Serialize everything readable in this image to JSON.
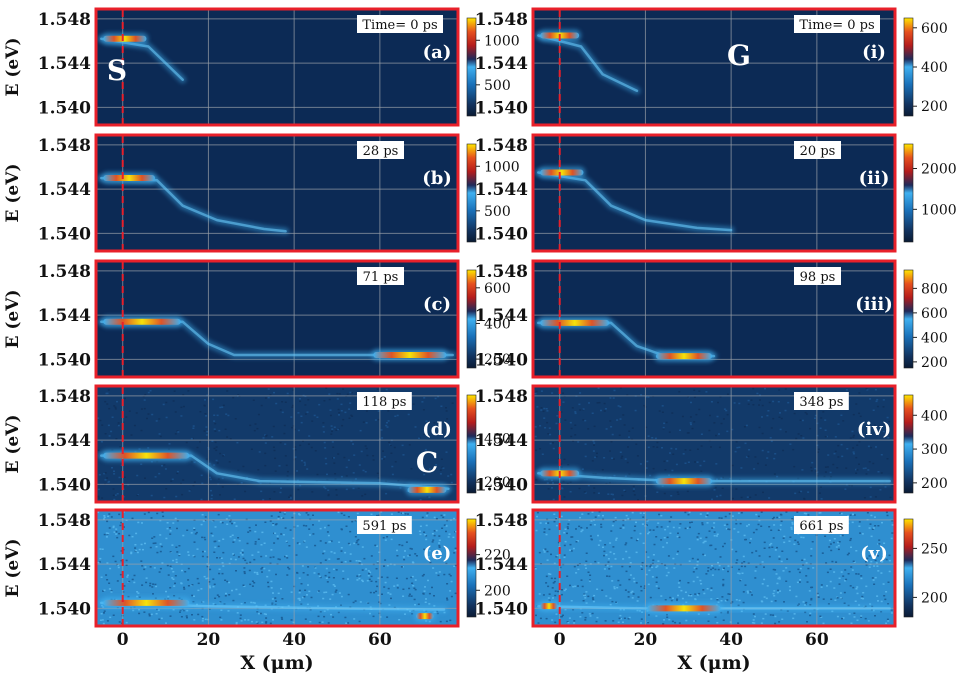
{
  "chart_data": {
    "type": "heatmap",
    "x_axis": {
      "label": "X (μm)",
      "ticks": [
        "0",
        "20",
        "40",
        "60"
      ],
      "range": [
        -6,
        78
      ]
    },
    "y_axis": {
      "label": "E (eV)",
      "ticks": [
        "1.548",
        "1.544",
        "1.540"
      ],
      "range": [
        1.5385,
        1.5488
      ]
    },
    "grid": true,
    "columns": [
      {
        "letter": "S",
        "panels": [
          {
            "label": "(a)",
            "time": "Time= 0 ps",
            "colorbar_ticks": [
              "1000",
              "500"
            ],
            "colorbar_range": [
              150,
              1250
            ],
            "features": [
              {
                "x_start": -5,
                "x_end": 6,
                "energy": 1.5462,
                "peak": 1200
              }
            ],
            "trail": [
              [
                -5,
                1.5462
              ],
              [
                6,
                1.5455
              ],
              [
                10,
                1.544
              ],
              [
                14,
                1.5425
              ]
            ]
          },
          {
            "label": "(b)",
            "time": "28 ps",
            "colorbar_ticks": [
              "1000",
              "500"
            ],
            "colorbar_range": [
              150,
              1250
            ],
            "features": [
              {
                "x_start": -5,
                "x_end": 8,
                "energy": 1.545,
                "peak": 1200
              }
            ],
            "trail": [
              [
                -5,
                1.545
              ],
              [
                8,
                1.5448
              ],
              [
                14,
                1.5425
              ],
              [
                22,
                1.5412
              ],
              [
                33,
                1.5404
              ],
              [
                38,
                1.5402
              ]
            ]
          },
          {
            "label": "(c)",
            "time": "71 ps",
            "colorbar_ticks": [
              "600",
              "400",
              "200"
            ],
            "colorbar_range": [
              150,
              700
            ],
            "features": [
              {
                "x_start": -5,
                "x_end": 14,
                "energy": 1.5434,
                "peak": 600
              },
              {
                "x_start": 58,
                "x_end": 76,
                "energy": 1.5404,
                "peak": 650
              }
            ],
            "trail": [
              [
                -5,
                1.5434
              ],
              [
                14,
                1.5434
              ],
              [
                20,
                1.5414
              ],
              [
                26,
                1.5404
              ],
              [
                50,
                1.5404
              ],
              [
                77,
                1.5404
              ]
            ]
          },
          {
            "label": "(d)",
            "time": "118 ps",
            "colorbar_ticks": [
              "400",
              "200"
            ],
            "colorbar_range": [
              150,
              600
            ],
            "features": [
              {
                "x_start": -5,
                "x_end": 16,
                "energy": 1.5426,
                "peak": 500
              },
              {
                "x_start": 66,
                "x_end": 76,
                "energy": 1.5395,
                "peak": 560
              }
            ],
            "trail": [
              [
                -5,
                1.5426
              ],
              [
                16,
                1.5426
              ],
              [
                22,
                1.541
              ],
              [
                32,
                1.5403
              ],
              [
                60,
                1.5401
              ],
              [
                76,
                1.5396
              ]
            ]
          },
          {
            "label": "(e)",
            "time": "591 ps",
            "colorbar_ticks": [
              "220",
              "200"
            ],
            "colorbar_range": [
              185,
              240
            ],
            "features": [
              {
                "x_start": -5,
                "x_end": 16,
                "energy": 1.5405,
                "peak": 235
              },
              {
                "x_start": 68,
                "x_end": 73,
                "energy": 1.5393,
                "peak": 235
              }
            ],
            "trail": [
              [
                -5,
                1.5405
              ],
              [
                20,
                1.5402
              ],
              [
                50,
                1.54
              ],
              [
                75,
                1.5399
              ]
            ]
          }
        ]
      },
      {
        "letter": "G",
        "panels": [
          {
            "label": "(i)",
            "time": "Time= 0 ps",
            "colorbar_ticks": [
              "600",
              "400",
              "200"
            ],
            "colorbar_range": [
              150,
              650
            ],
            "features": [
              {
                "x_start": -5,
                "x_end": 5,
                "energy": 1.5465,
                "peak": 620
              }
            ],
            "trail": [
              [
                -5,
                1.5465
              ],
              [
                5,
                1.5455
              ],
              [
                10,
                1.543
              ],
              [
                18,
                1.5415
              ]
            ]
          },
          {
            "label": "(ii)",
            "time": "20 ps",
            "colorbar_ticks": [
              "2000",
              "1000"
            ],
            "colorbar_range": [
              200,
              2600
            ],
            "features": [
              {
                "x_start": -5,
                "x_end": 6,
                "energy": 1.5455,
                "peak": 2500
              }
            ],
            "trail": [
              [
                -5,
                1.5455
              ],
              [
                6,
                1.5448
              ],
              [
                12,
                1.5425
              ],
              [
                20,
                1.5412
              ],
              [
                32,
                1.5405
              ],
              [
                40,
                1.5403
              ]
            ]
          },
          {
            "label": "(iii)",
            "time": "98 ps",
            "colorbar_ticks": [
              "800",
              "600",
              "400",
              "200"
            ],
            "colorbar_range": [
              150,
              950
            ],
            "features": [
              {
                "x_start": -5,
                "x_end": 12,
                "energy": 1.5433,
                "peak": 600
              },
              {
                "x_start": 22,
                "x_end": 36,
                "energy": 1.5403,
                "peak": 900
              }
            ],
            "trail": [
              [
                -5,
                1.5433
              ],
              [
                12,
                1.5433
              ],
              [
                18,
                1.5412
              ],
              [
                24,
                1.5404
              ],
              [
                36,
                1.5403
              ]
            ]
          },
          {
            "label": "(iv)",
            "time": "348 ps",
            "colorbar_ticks": [
              "400",
              "300",
              "200"
            ],
            "colorbar_range": [
              170,
              460
            ],
            "features": [
              {
                "x_start": -5,
                "x_end": 5,
                "energy": 1.541,
                "peak": 320
              },
              {
                "x_start": 22,
                "x_end": 36,
                "energy": 1.5403,
                "peak": 450
              }
            ],
            "trail": [
              [
                -5,
                1.541
              ],
              [
                10,
                1.5406
              ],
              [
                22,
                1.5404
              ],
              [
                36,
                1.5403
              ],
              [
                60,
                1.5403
              ],
              [
                77,
                1.5403
              ]
            ]
          },
          {
            "label": "(v)",
            "time": "661 ps",
            "colorbar_ticks": [
              "250",
              "200"
            ],
            "colorbar_range": [
              180,
              280
            ],
            "features": [
              {
                "x_start": -5,
                "x_end": 0,
                "energy": 1.5402,
                "peak": 240
              },
              {
                "x_start": 20,
                "x_end": 38,
                "energy": 1.54,
                "peak": 260
              }
            ],
            "trail": [
              [
                -5,
                1.5402
              ],
              [
                20,
                1.54
              ],
              [
                60,
                1.54
              ],
              [
                77,
                1.54
              ]
            ]
          }
        ]
      }
    ],
    "extra_letter": "C"
  },
  "colors": {
    "frame": "#e8202a",
    "grid": "#9aa0a8",
    "dashed_marker": "#e8202a",
    "colormap": [
      "#0a1a33",
      "#12335f",
      "#1a70b8",
      "#3fb0f0",
      "#1e2a5a",
      "#b41c1c",
      "#e6501e",
      "#ffe600"
    ]
  }
}
